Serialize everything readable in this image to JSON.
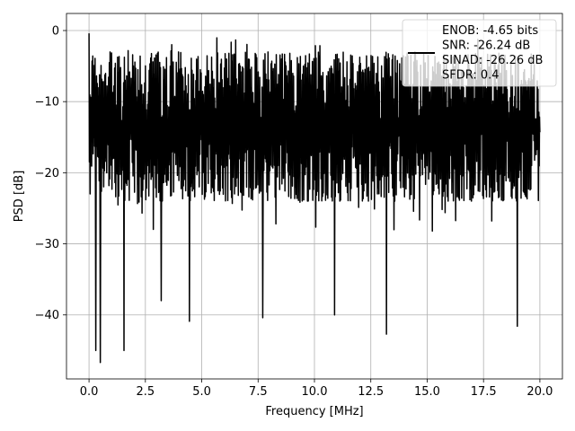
{
  "chart_data": {
    "type": "line",
    "title": "",
    "xlabel": "Frequency [MHz]",
    "ylabel": "PSD [dB]",
    "xlim": [
      -1.0,
      21.0
    ],
    "ylim": [
      -49.0,
      2.4
    ],
    "x_ticks": [
      0.0,
      2.5,
      5.0,
      7.5,
      10.0,
      12.5,
      15.0,
      17.5,
      20.0
    ],
    "x_tick_labels": [
      "0.0",
      "2.5",
      "5.0",
      "7.5",
      "10.0",
      "12.5",
      "15.0",
      "17.5",
      "20.0"
    ],
    "y_ticks": [
      0,
      -10,
      -20,
      -30,
      -40
    ],
    "y_tick_labels": [
      "0",
      "−10",
      "−20",
      "−30",
      "−40"
    ],
    "grid": true,
    "legend_position": "top-right",
    "legend_lines": [
      "ENOB: -4.65 bits",
      "SNR: -26.24 dB",
      "SINAD: -26.26 dB",
      "SFDR: 0.4"
    ],
    "series": [
      {
        "color": "#000000",
        "x_range": [
          0.0,
          20.0
        ],
        "points": 1200,
        "band_max_approx": -3.0,
        "band_min_approx": -24.0,
        "peaks": [
          {
            "x": 0.0,
            "y": -0.4
          }
        ],
        "dips": [
          {
            "x": 0.3,
            "y": -45.0
          },
          {
            "x": 0.5,
            "y": -46.7
          },
          {
            "x": 1.55,
            "y": -45.0
          },
          {
            "x": 3.2,
            "y": -38.0
          },
          {
            "x": 4.45,
            "y": -40.9
          },
          {
            "x": 7.7,
            "y": -40.4
          },
          {
            "x": 10.9,
            "y": -40.0
          },
          {
            "x": 13.2,
            "y": -42.7
          },
          {
            "x": 19.0,
            "y": -41.6
          }
        ]
      }
    ]
  }
}
